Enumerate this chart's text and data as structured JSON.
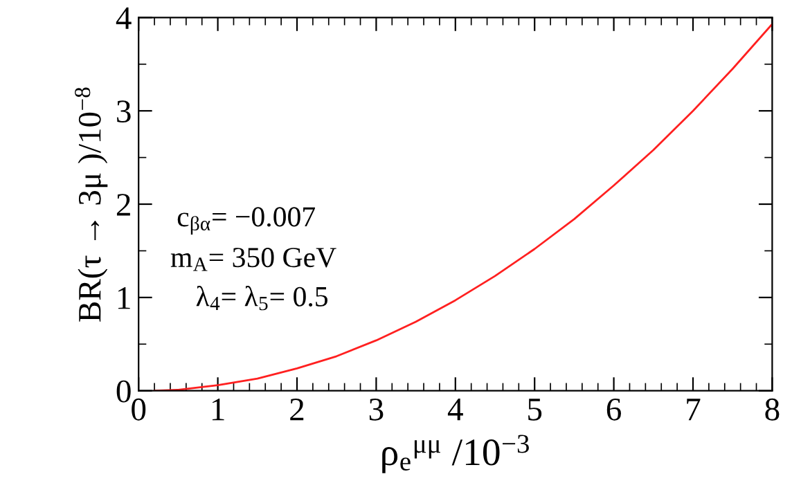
{
  "chart_data": {
    "type": "line",
    "xlabel": "ρ$_{e}$$^{μμ}$ /10$^{−3}$",
    "ylabel": "BR(τ → 3μ )/10$^{−8}$",
    "series": [
      {
        "color": "#ff2020",
        "x": [
          0.2,
          0.5,
          1,
          1.5,
          2,
          2.5,
          3,
          3.5,
          4,
          4.5,
          5,
          5.5,
          6,
          6.5,
          7,
          7.5,
          8
        ],
        "values": [
          0,
          0.01,
          0.06,
          0.13,
          0.24,
          0.37,
          0.54,
          0.74,
          0.97,
          1.23,
          1.52,
          1.84,
          2.2,
          2.58,
          3.0,
          3.45,
          3.93
        ]
      }
    ],
    "xlim": [
      0,
      8
    ],
    "ylim": [
      0,
      4
    ],
    "xticks": [
      0,
      1,
      2,
      3,
      4,
      5,
      6,
      7,
      8
    ],
    "yticks": [
      0,
      1,
      2,
      3,
      4
    ],
    "annotations": [
      "c$_{βα}$= −0.007",
      "m$_{A}$= 350 GeV",
      "λ$_{4}$= λ$_{5}$= 0.5"
    ],
    "grid": false,
    "legend": false,
    "marker": "none",
    "line_style": "solid"
  }
}
